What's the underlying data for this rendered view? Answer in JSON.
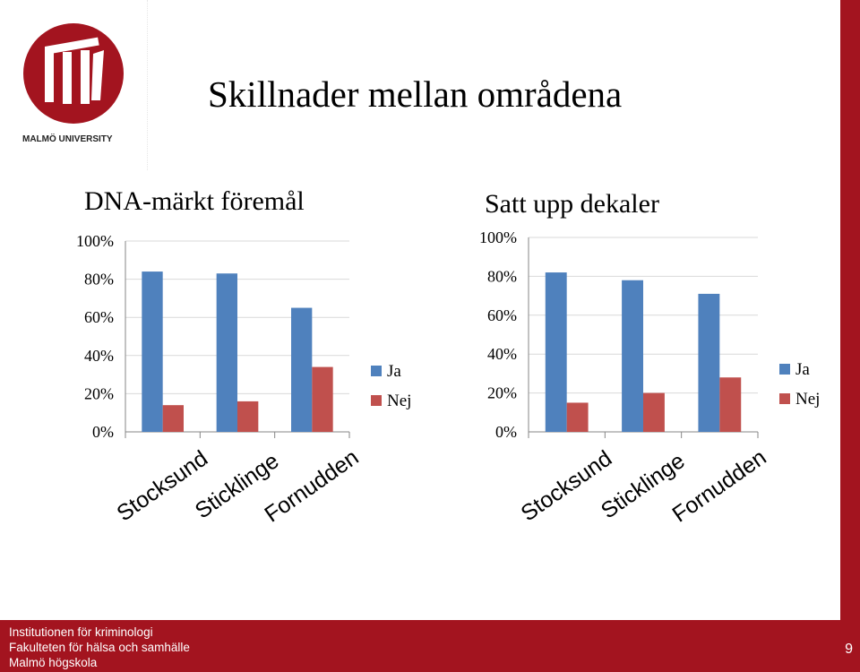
{
  "slide": {
    "title": "Skillnader mellan områdena",
    "page_number": "9"
  },
  "logo": {
    "wordmark": "MALMÖ UNIVERSITY"
  },
  "footer": {
    "line1": "Institutionen för kriminologi",
    "line2": "Fakulteten för hälsa och samhälle",
    "line3": "Malmö högskola"
  },
  "colors": {
    "brand_red": "#a3141f",
    "series_ja": "#4f81bd",
    "series_nej": "#c0504d"
  },
  "chart_data": [
    {
      "type": "bar",
      "title": "DNA-märkt föremål",
      "categories": [
        "Stocksund",
        "Sticklinge",
        "Fornudden"
      ],
      "series": [
        {
          "name": "Ja",
          "values": [
            84,
            83,
            65
          ]
        },
        {
          "name": "Nej",
          "values": [
            14,
            16,
            34
          ]
        }
      ],
      "ylim": [
        0,
        100
      ],
      "yticks": [
        "0%",
        "20%",
        "40%",
        "60%",
        "80%",
        "100%"
      ],
      "grid": true,
      "legend": "right"
    },
    {
      "type": "bar",
      "title": "Satt upp dekaler",
      "categories": [
        "Stocksund",
        "Sticklinge",
        "Fornudden"
      ],
      "series": [
        {
          "name": "Ja",
          "values": [
            82,
            78,
            71
          ]
        },
        {
          "name": "Nej",
          "values": [
            15,
            20,
            28
          ]
        }
      ],
      "ylim": [
        0,
        100
      ],
      "yticks": [
        "0%",
        "20%",
        "40%",
        "60%",
        "80%",
        "100%"
      ],
      "grid": true,
      "legend": "right"
    }
  ]
}
